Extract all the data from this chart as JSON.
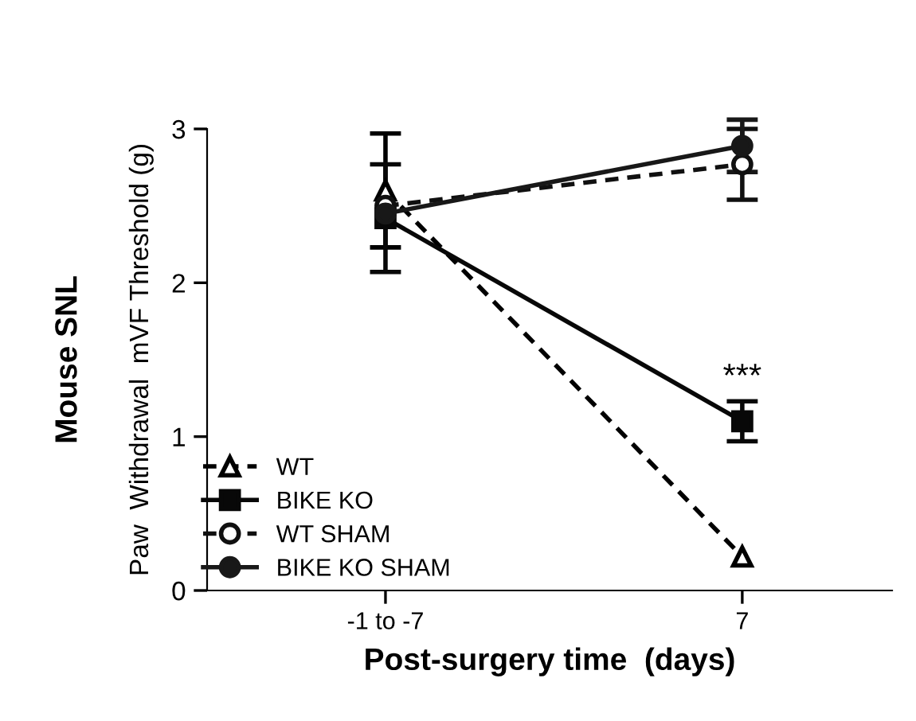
{
  "chart_data": {
    "type": "line",
    "title": "Mouse SNL",
    "ylabel": "Paw  Withdrawal  mVF Threshold (g)",
    "xlabel": "Post-surgery time  (days)",
    "categories": [
      "-1 to -7",
      "7"
    ],
    "series": [
      {
        "name": "WT",
        "color": "#000000",
        "values": [
          2.6,
          0.22
        ],
        "errors": [
          0.37,
          null
        ],
        "marker": "triangle",
        "line_style": "dashed"
      },
      {
        "name": "BIKE KO",
        "color": "#080808",
        "values": [
          2.42,
          1.1
        ],
        "errors": [
          0.35,
          0.13
        ],
        "marker": "square",
        "line_style": "solid"
      },
      {
        "name": "WT SHAM",
        "color": "#101010",
        "values": [
          2.5,
          2.77
        ],
        "errors": [
          null,
          0.23
        ],
        "marker": "circle",
        "line_style": "dashed"
      },
      {
        "name": "BIKE KO SHAM",
        "color": "#181818",
        "values": [
          2.45,
          2.89
        ],
        "errors": [
          null,
          0.17
        ],
        "marker": "circle",
        "line_style": "solid"
      }
    ],
    "annotations": [
      {
        "text": "***",
        "x": "7",
        "y": 1.28
      }
    ],
    "ylim": [
      0,
      3
    ],
    "yticks": [
      0,
      1,
      2,
      3
    ],
    "legend": "bottom left",
    "grid": false
  }
}
